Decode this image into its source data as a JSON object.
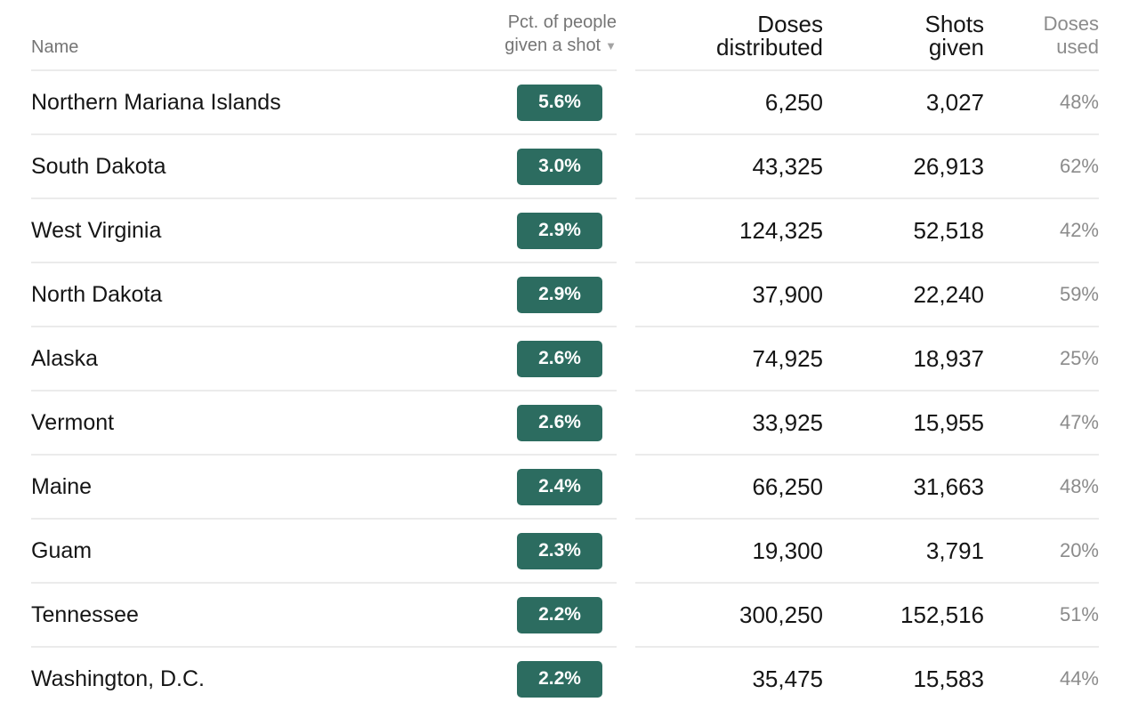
{
  "chart_data": {
    "type": "table",
    "sorted_by": "Pct. of people given a shot",
    "sort_direction": "descending",
    "columns": [
      "Name",
      "Pct. of people given a shot",
      "Doses distributed",
      "Shots given",
      "Doses used"
    ],
    "rows": [
      {
        "name": "Northern Mariana Islands",
        "pct": "5.6%",
        "distributed": "6,250",
        "shots": "3,027",
        "used": "48%"
      },
      {
        "name": "South Dakota",
        "pct": "3.0%",
        "distributed": "43,325",
        "shots": "26,913",
        "used": "62%"
      },
      {
        "name": "West Virginia",
        "pct": "2.9%",
        "distributed": "124,325",
        "shots": "52,518",
        "used": "42%"
      },
      {
        "name": "North Dakota",
        "pct": "2.9%",
        "distributed": "37,900",
        "shots": "22,240",
        "used": "59%"
      },
      {
        "name": "Alaska",
        "pct": "2.6%",
        "distributed": "74,925",
        "shots": "18,937",
        "used": "25%"
      },
      {
        "name": "Vermont",
        "pct": "2.6%",
        "distributed": "33,925",
        "shots": "15,955",
        "used": "47%"
      },
      {
        "name": "Maine",
        "pct": "2.4%",
        "distributed": "66,250",
        "shots": "31,663",
        "used": "48%"
      },
      {
        "name": "Guam",
        "pct": "2.3%",
        "distributed": "19,300",
        "shots": "3,791",
        "used": "20%"
      },
      {
        "name": "Tennessee",
        "pct": "2.2%",
        "distributed": "300,250",
        "shots": "152,516",
        "used": "51%"
      },
      {
        "name": "Washington, D.C.",
        "pct": "2.2%",
        "distributed": "35,475",
        "shots": "15,583",
        "used": "44%"
      }
    ]
  },
  "header": {
    "name": "Name",
    "pct_line1": "Pct. of people",
    "pct_line2": "given a shot",
    "sort_indicator": "▼",
    "distributed_line1": "Doses",
    "distributed_line2": "distributed",
    "shots_line1": "Shots",
    "shots_line2": "given",
    "used_line1": "Doses",
    "used_line2": "used"
  },
  "colors": {
    "badge_background": "#2c6c60",
    "badge_text": "#ffffff",
    "header_text": "#757575",
    "muted_header_text": "#ababab",
    "body_text": "#151515",
    "muted_value_text": "#8b8b8b",
    "divider": "#ebebeb"
  }
}
